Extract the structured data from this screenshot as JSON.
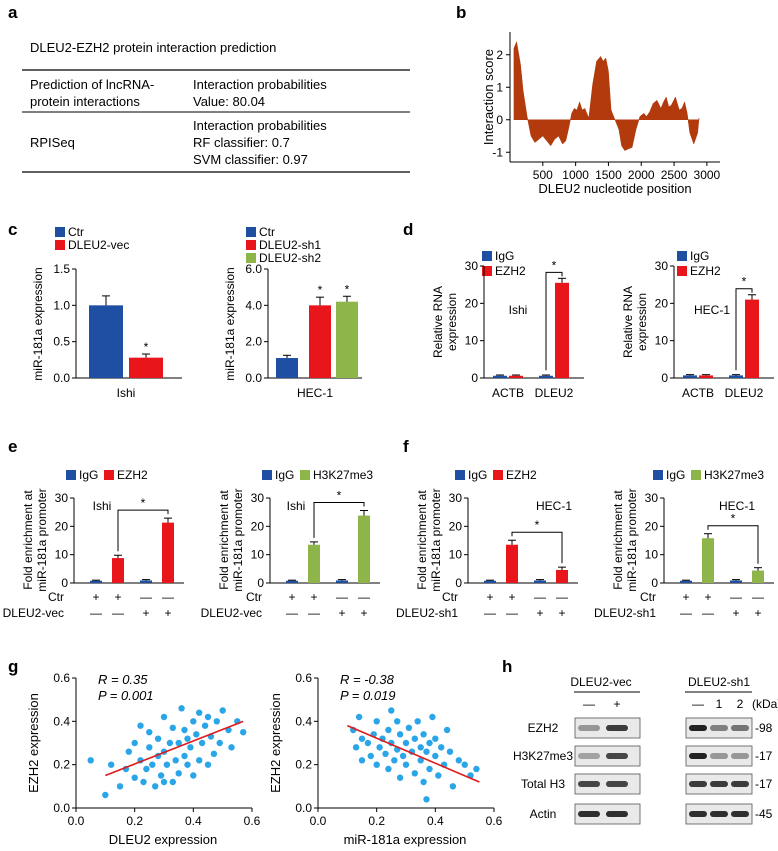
{
  "colors": {
    "blue": "#1f4fa3",
    "red": "#e8151b",
    "green": "#8db54a",
    "brown": "#b23a0c",
    "sky": "#2aa6e8",
    "regline": "#e01b1b"
  },
  "panel_labels": {
    "a": "a",
    "b": "b",
    "c": "c",
    "d": "d",
    "e": "e",
    "f": "f",
    "g": "g",
    "h": "h"
  },
  "panel_a": {
    "title": "DLEU2-EZH2 protein interaction prediction",
    "rows": [
      {
        "method_lines": [
          "Prediction of lncRNA-",
          "protein interactions"
        ],
        "result_lines": [
          "Interaction probabilities",
          "Value: 80.04"
        ]
      },
      {
        "method_lines": [
          "RPISeq"
        ],
        "result_lines": [
          "Interaction probabilities",
          "RF classifier: 0.7",
          "SVM classifier: 0.97"
        ]
      }
    ]
  },
  "chart_data": [
    {
      "id": "b",
      "type": "area",
      "xlabel": "DLEU2 nucleotide position",
      "ylabel": "Interaction score",
      "xticks": [
        "500",
        "1000",
        "1500",
        "2000",
        "2500",
        "3000"
      ],
      "yticks": [
        "-1",
        "0",
        "1",
        "2"
      ],
      "xlim": [
        0,
        3200
      ],
      "ylim": [
        -1.3,
        2.7
      ],
      "x": [
        60,
        100,
        160,
        200,
        260,
        320,
        380,
        440,
        500,
        560,
        620,
        680,
        740,
        800,
        850,
        900,
        940,
        980,
        1020,
        1060,
        1100,
        1140,
        1200,
        1260,
        1320,
        1380,
        1420,
        1460,
        1500,
        1540,
        1600,
        1660,
        1700,
        1750,
        1800,
        1860,
        1920,
        1980,
        2040,
        2080,
        2130,
        2180,
        2240,
        2300,
        2340,
        2380,
        2420,
        2460,
        2520,
        2580,
        2620,
        2660,
        2700,
        2740,
        2800,
        2860,
        2880
      ],
      "y": [
        2.2,
        2.4,
        1.7,
        0.9,
        0.1,
        -0.5,
        -0.7,
        -0.6,
        -0.5,
        -0.65,
        -0.8,
        -0.6,
        -0.5,
        -0.75,
        -0.65,
        -0.2,
        0.2,
        0.35,
        0.3,
        0.55,
        0.3,
        0.35,
        0.05,
        1.1,
        1.8,
        1.95,
        1.8,
        1.9,
        1.5,
        0.3,
        0.0,
        -0.3,
        -0.8,
        -0.95,
        -0.9,
        -0.85,
        -0.3,
        0.1,
        0.2,
        0.1,
        0.25,
        0.5,
        0.6,
        0.35,
        0.55,
        0.7,
        0.4,
        0.45,
        0.7,
        0.3,
        0.35,
        0.55,
        0.2,
        -0.4,
        -0.75,
        -0.4,
        0.05
      ]
    },
    {
      "id": "c1",
      "type": "bar",
      "ylabel": "miR-181a expression",
      "xlabel": "Ishi",
      "legend": [
        "Ctr",
        "DLEU2-vec"
      ],
      "categories": [
        "Ctr",
        "DLEU2-vec"
      ],
      "values": [
        1.0,
        0.28
      ],
      "errors": [
        0.13,
        0.05
      ],
      "ylim": [
        0,
        1.5
      ],
      "yticks": [
        "0.0",
        "0.5",
        "1.0",
        "1.5"
      ],
      "stars": [
        "",
        "*"
      ]
    },
    {
      "id": "c2",
      "type": "bar",
      "ylabel": "miR-181a expression",
      "xlabel": "HEC-1",
      "legend": [
        "Ctr",
        "DLEU2-sh1",
        "DLEU2-sh2"
      ],
      "categories": [
        "Ctr",
        "DLEU2-sh1",
        "DLEU2-sh2"
      ],
      "values": [
        1.1,
        4.0,
        4.2
      ],
      "errors": [
        0.15,
        0.45,
        0.3
      ],
      "ylim": [
        0,
        6
      ],
      "yticks": [
        "0.0",
        "2.0",
        "4.0",
        "6.0"
      ],
      "stars": [
        "",
        "*",
        "*"
      ]
    },
    {
      "id": "d1",
      "type": "bar",
      "ylabel": "Relative RNA expression",
      "label": "Ishi",
      "legend": [
        "IgG",
        "EZH2"
      ],
      "categories": [
        "ACTB",
        "DLEU2"
      ],
      "series": [
        {
          "name": "IgG",
          "values": [
            0.6,
            0.6
          ]
        },
        {
          "name": "EZH2",
          "values": [
            0.6,
            25.5
          ]
        }
      ],
      "errors": [
        [
          0.2,
          0.2
        ],
        [
          0.2,
          1.2
        ]
      ],
      "ylim": [
        0,
        30
      ],
      "yticks": [
        "0",
        "10",
        "20",
        "30"
      ],
      "star": "*"
    },
    {
      "id": "d2",
      "type": "bar",
      "ylabel": "Relative RNA expression",
      "label": "HEC-1",
      "legend": [
        "IgG",
        "EZH2"
      ],
      "categories": [
        "ACTB",
        "DLEU2"
      ],
      "series": [
        {
          "name": "IgG",
          "values": [
            0.7,
            0.7
          ]
        },
        {
          "name": "EZH2",
          "values": [
            0.7,
            21.0
          ]
        }
      ],
      "errors": [
        [
          0.2,
          0.2
        ],
        [
          0.2,
          1.3
        ]
      ],
      "ylim": [
        0,
        30
      ],
      "yticks": [
        "0",
        "10",
        "20",
        "30"
      ],
      "star": "*"
    },
    {
      "id": "e1",
      "type": "bar",
      "ylabel": "Fold enrichment at miR-181a promoter",
      "label": "Ishi",
      "legend": [
        "IgG",
        "EZH2"
      ],
      "values": [
        0.8,
        8.8,
        0.9,
        21.3
      ],
      "errors": [
        0.2,
        1.0,
        0.3,
        1.6
      ],
      "colors": [
        "blue",
        "red",
        "blue",
        "red"
      ],
      "ylim": [
        0,
        30
      ],
      "yticks": [
        "0",
        "10",
        "20",
        "30"
      ],
      "rows": [
        {
          "name": "Ctr",
          "marks": [
            "+",
            "+",
            "—",
            "—"
          ]
        },
        {
          "name": "DLEU2-vec",
          "marks": [
            "—",
            "—",
            "+",
            "+"
          ]
        }
      ],
      "star": "*"
    },
    {
      "id": "e2",
      "type": "bar",
      "ylabel": "Fold enrichment at miR-181a promoter",
      "label": "Ishi",
      "legend": [
        "IgG",
        "H3K27me3"
      ],
      "values": [
        0.8,
        13.5,
        0.9,
        23.8
      ],
      "errors": [
        0.2,
        1.0,
        0.3,
        1.8
      ],
      "colors": [
        "blue",
        "green",
        "blue",
        "green"
      ],
      "ylim": [
        0,
        30
      ],
      "yticks": [
        "0",
        "10",
        "20",
        "30"
      ],
      "rows": [
        {
          "name": "Ctr",
          "marks": [
            "+",
            "+",
            "—",
            "—"
          ]
        },
        {
          "name": "DLEU2-vec",
          "marks": [
            "—",
            "—",
            "+",
            "+"
          ]
        }
      ],
      "star": "*"
    },
    {
      "id": "f1",
      "type": "bar",
      "ylabel": "Fold enrichment at miR-181a promoter",
      "label": "HEC-1",
      "legend": [
        "IgG",
        "EZH2"
      ],
      "values": [
        0.8,
        13.5,
        0.9,
        4.6
      ],
      "errors": [
        0.2,
        1.6,
        0.3,
        1.0
      ],
      "colors": [
        "blue",
        "red",
        "blue",
        "red"
      ],
      "ylim": [
        0,
        30
      ],
      "yticks": [
        "0",
        "10",
        "20",
        "30"
      ],
      "rows": [
        {
          "name": "Ctr",
          "marks": [
            "+",
            "+",
            "—",
            "—"
          ]
        },
        {
          "name": "DLEU2-sh1",
          "marks": [
            "—",
            "—",
            "+",
            "+"
          ]
        }
      ],
      "star": "*"
    },
    {
      "id": "f2",
      "type": "bar",
      "ylabel": "Fold enrichment at miR-181a promoter",
      "label": "HEC-1",
      "legend": [
        "IgG",
        "H3K27me3"
      ],
      "values": [
        0.8,
        15.8,
        0.9,
        4.4
      ],
      "errors": [
        0.2,
        1.6,
        0.3,
        1.0
      ],
      "colors": [
        "blue",
        "green",
        "blue",
        "green"
      ],
      "ylim": [
        0,
        30
      ],
      "yticks": [
        "0",
        "10",
        "20",
        "30"
      ],
      "rows": [
        {
          "name": "Ctr",
          "marks": [
            "+",
            "+",
            "—",
            "—"
          ]
        },
        {
          "name": "DLEU2-sh1",
          "marks": [
            "—",
            "—",
            "+",
            "+"
          ]
        }
      ],
      "star": "*"
    },
    {
      "id": "g1",
      "type": "scatter",
      "xlabel": "DLEU2 expression",
      "ylabel": "EZH2 expression",
      "r_label": "R = 0.35",
      "p_label": "P = 0.001",
      "xlim": [
        0,
        0.6
      ],
      "ylim": [
        0,
        0.6
      ],
      "xticks": [
        "0.0",
        "0.2",
        "0.4",
        "0.6"
      ],
      "yticks": [
        "0.0",
        "0.2",
        "0.4",
        "0.6"
      ],
      "fit": [
        [
          0.1,
          0.15
        ],
        [
          0.57,
          0.4
        ]
      ],
      "points": [
        [
          0.05,
          0.22
        ],
        [
          0.1,
          0.06
        ],
        [
          0.12,
          0.2
        ],
        [
          0.15,
          0.1
        ],
        [
          0.17,
          0.18
        ],
        [
          0.18,
          0.26
        ],
        [
          0.2,
          0.14
        ],
        [
          0.2,
          0.3
        ],
        [
          0.22,
          0.22
        ],
        [
          0.23,
          0.12
        ],
        [
          0.24,
          0.18
        ],
        [
          0.25,
          0.28
        ],
        [
          0.25,
          0.35
        ],
        [
          0.26,
          0.2
        ],
        [
          0.27,
          0.1
        ],
        [
          0.28,
          0.24
        ],
        [
          0.28,
          0.32
        ],
        [
          0.29,
          0.15
        ],
        [
          0.3,
          0.26
        ],
        [
          0.3,
          0.42
        ],
        [
          0.31,
          0.2
        ],
        [
          0.32,
          0.3
        ],
        [
          0.33,
          0.12
        ],
        [
          0.33,
          0.37
        ],
        [
          0.34,
          0.22
        ],
        [
          0.35,
          0.16
        ],
        [
          0.35,
          0.3
        ],
        [
          0.36,
          0.46
        ],
        [
          0.37,
          0.24
        ],
        [
          0.37,
          0.36
        ],
        [
          0.38,
          0.2
        ],
        [
          0.38,
          0.32
        ],
        [
          0.39,
          0.28
        ],
        [
          0.4,
          0.4
        ],
        [
          0.4,
          0.15
        ],
        [
          0.41,
          0.34
        ],
        [
          0.42,
          0.22
        ],
        [
          0.42,
          0.44
        ],
        [
          0.43,
          0.3
        ],
        [
          0.44,
          0.38
        ],
        [
          0.45,
          0.2
        ],
        [
          0.45,
          0.42
        ],
        [
          0.46,
          0.33
        ],
        [
          0.47,
          0.25
        ],
        [
          0.48,
          0.4
        ],
        [
          0.49,
          0.3
        ],
        [
          0.5,
          0.45
        ],
        [
          0.52,
          0.36
        ],
        [
          0.53,
          0.28
        ],
        [
          0.55,
          0.4
        ],
        [
          0.57,
          0.35
        ],
        [
          0.22,
          0.38
        ],
        [
          0.3,
          0.12
        ]
      ]
    },
    {
      "id": "g2",
      "type": "scatter",
      "xlabel": "miR-181a expression",
      "ylabel": "EZH2 expression",
      "r_label": "R = -0.38",
      "p_label": "P = 0.019",
      "xlim": [
        0,
        0.6
      ],
      "ylim": [
        0,
        0.6
      ],
      "xticks": [
        "0.0",
        "0.2",
        "0.4",
        "0.6"
      ],
      "yticks": [
        "0.0",
        "0.2",
        "0.4",
        "0.6"
      ],
      "fit": [
        [
          0.1,
          0.38
        ],
        [
          0.55,
          0.12
        ]
      ],
      "points": [
        [
          0.12,
          0.36
        ],
        [
          0.13,
          0.28
        ],
        [
          0.15,
          0.22
        ],
        [
          0.15,
          0.32
        ],
        [
          0.17,
          0.3
        ],
        [
          0.18,
          0.24
        ],
        [
          0.19,
          0.34
        ],
        [
          0.2,
          0.2
        ],
        [
          0.2,
          0.4
        ],
        [
          0.21,
          0.28
        ],
        [
          0.22,
          0.32
        ],
        [
          0.23,
          0.25
        ],
        [
          0.24,
          0.18
        ],
        [
          0.24,
          0.36
        ],
        [
          0.25,
          0.3
        ],
        [
          0.26,
          0.22
        ],
        [
          0.27,
          0.4
        ],
        [
          0.27,
          0.27
        ],
        [
          0.28,
          0.14
        ],
        [
          0.28,
          0.34
        ],
        [
          0.29,
          0.24
        ],
        [
          0.3,
          0.3
        ],
        [
          0.3,
          0.2
        ],
        [
          0.31,
          0.37
        ],
        [
          0.32,
          0.26
        ],
        [
          0.33,
          0.16
        ],
        [
          0.33,
          0.32
        ],
        [
          0.34,
          0.4
        ],
        [
          0.35,
          0.22
        ],
        [
          0.35,
          0.28
        ],
        [
          0.36,
          0.12
        ],
        [
          0.36,
          0.34
        ],
        [
          0.37,
          0.26
        ],
        [
          0.37,
          0.04
        ],
        [
          0.38,
          0.3
        ],
        [
          0.38,
          0.18
        ],
        [
          0.39,
          0.42
        ],
        [
          0.4,
          0.24
        ],
        [
          0.4,
          0.32
        ],
        [
          0.41,
          0.15
        ],
        [
          0.42,
          0.28
        ],
        [
          0.43,
          0.2
        ],
        [
          0.44,
          0.36
        ],
        [
          0.45,
          0.26
        ],
        [
          0.46,
          0.1
        ],
        [
          0.48,
          0.22
        ],
        [
          0.5,
          0.2
        ],
        [
          0.52,
          0.15
        ],
        [
          0.54,
          0.18
        ],
        [
          0.14,
          0.42
        ],
        [
          0.25,
          0.45
        ]
      ]
    }
  ],
  "panel_g": {
    "r_prefix": "R",
    "p_prefix": "P"
  },
  "panel_h": {
    "group1": "DLEU2-vec",
    "group2": "DLEU2-sh1",
    "unit": "(kDa)",
    "lanes1": [
      "—",
      "+"
    ],
    "lanes2": [
      "—",
      "1",
      "2"
    ],
    "rows": [
      {
        "name": "EZH2",
        "kda": "-98"
      },
      {
        "name": "H3K27me3",
        "kda": "-17"
      },
      {
        "name": "Total H3",
        "kda": "-17"
      },
      {
        "name": "Actin",
        "kda": "-45"
      }
    ]
  }
}
